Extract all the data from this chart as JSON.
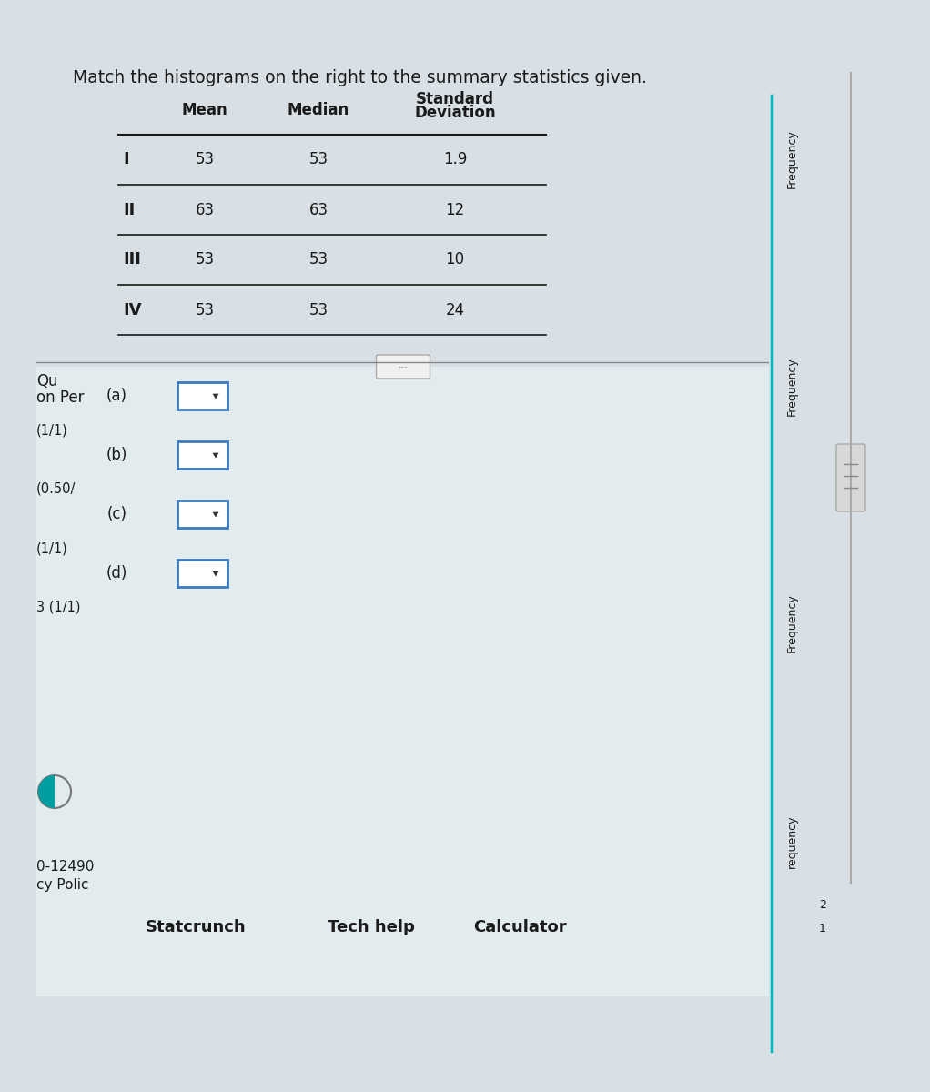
{
  "title": "Match the histograms on the right to the summary statistics given.",
  "table_rows": [
    [
      "I",
      "53",
      "53",
      "1.9"
    ],
    [
      "II",
      "63",
      "63",
      "12"
    ],
    [
      "III",
      "53",
      "53",
      "10"
    ],
    [
      "IV",
      "53",
      "53",
      "24"
    ]
  ],
  "dropdown_labels": [
    "(a)",
    "(b)",
    "(c)",
    "(d)"
  ],
  "left_side_labels": [
    "on Per",
    "Qu",
    "(1/1)",
    "(0.50/",
    "(1/1)",
    "3 (1/1)"
  ],
  "bottom_partial": [
    "0-12490",
    "cy Polic"
  ],
  "bottom_links": [
    "Statcrunch",
    "Tech help",
    "Calculator"
  ],
  "right_freq_labels": [
    "Frequency",
    "Frequency",
    "Frequency",
    "requency"
  ],
  "right_numbers": [
    "2",
    "1"
  ],
  "ellipsis_btn": "...",
  "bg_outer": "#d8e0e5",
  "bg_content": "#ffffff",
  "bg_header": "#1a4f72",
  "bg_lower": "#eaf4f4",
  "text_color": "#1a1a1a",
  "teal_line_color": "#00b8bc",
  "dropdown_border": "#3a7abf",
  "divider_color": "#888888",
  "scroll_color": "#999999",
  "circle_teal": "#009ea0"
}
